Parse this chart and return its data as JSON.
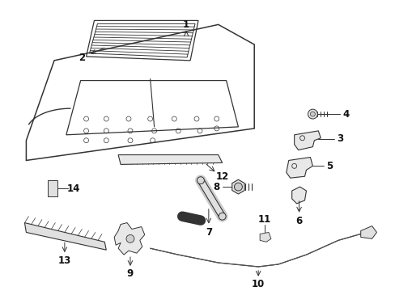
{
  "bg_color": "#ffffff",
  "line_color": "#333333",
  "text_color": "#111111",
  "fig_width": 4.89,
  "fig_height": 3.6,
  "dpi": 100
}
